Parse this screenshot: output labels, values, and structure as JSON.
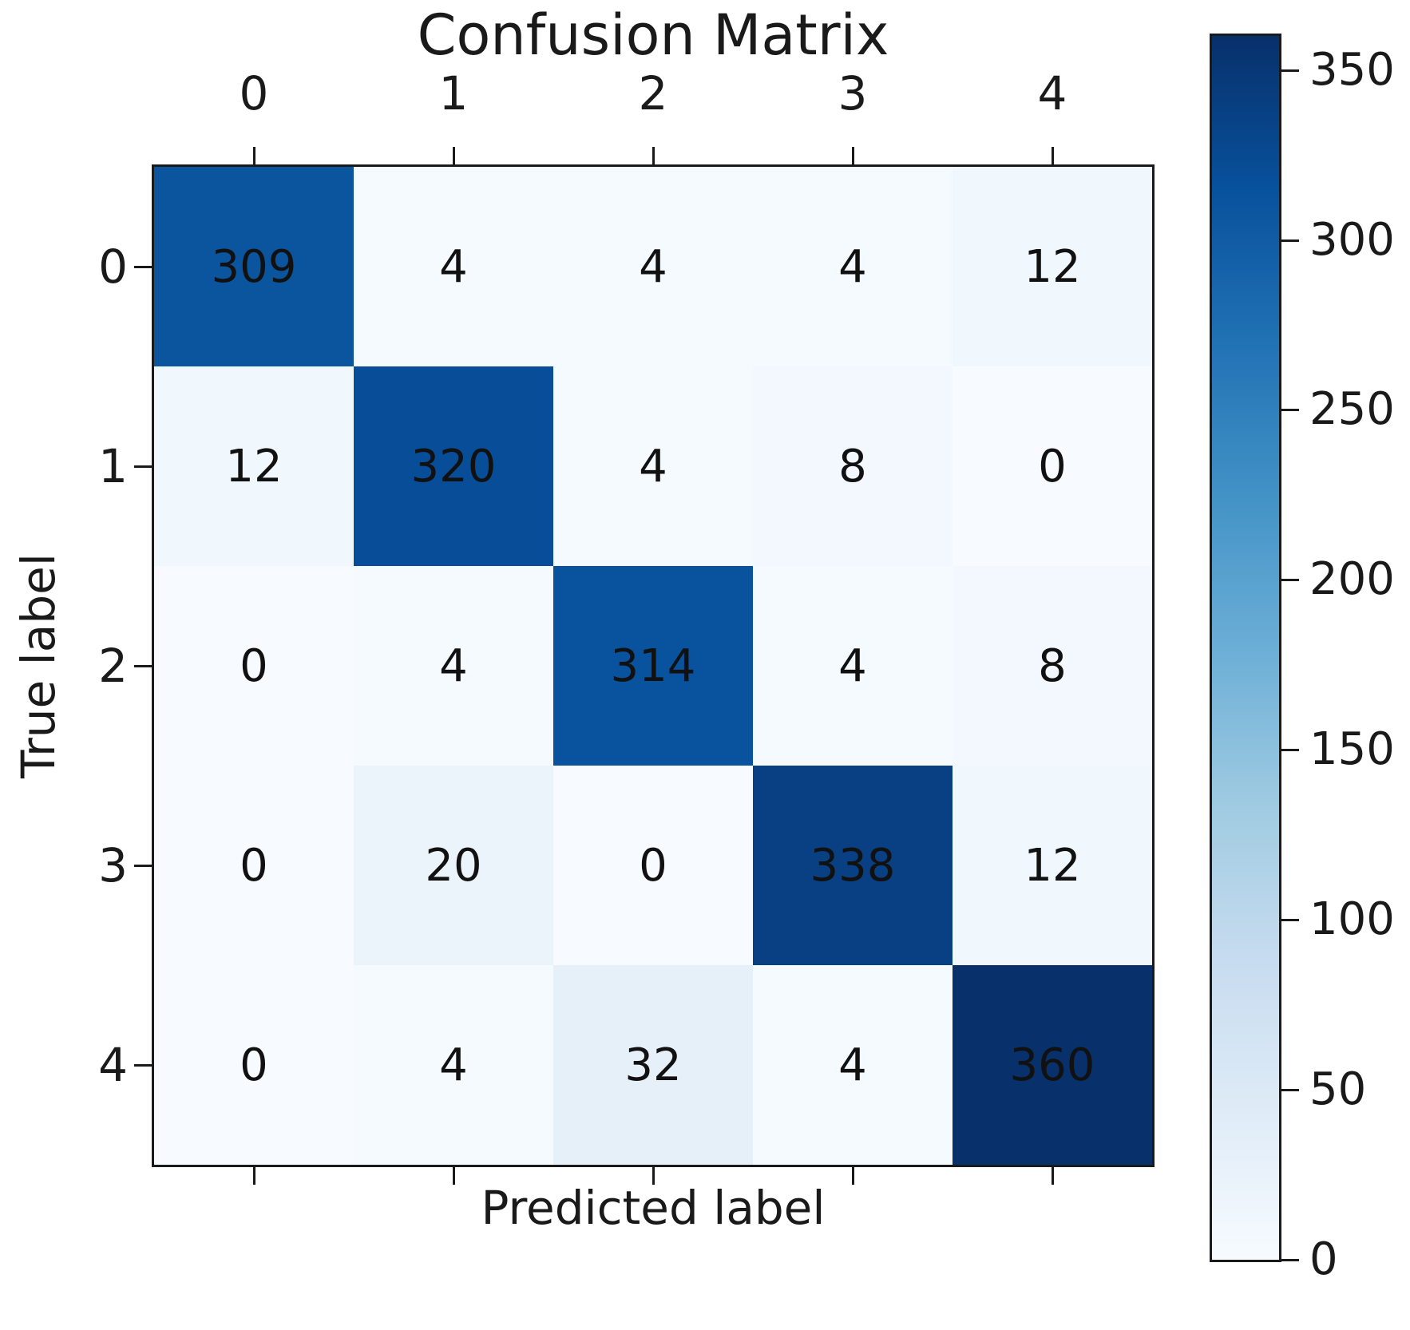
{
  "figure": {
    "background": "#ffffff"
  },
  "chart_data": {
    "type": "heatmap",
    "title": "Confusion Matrix",
    "xlabel": "Predicted label",
    "ylabel": "True label",
    "x_tick_labels": [
      "0",
      "1",
      "2",
      "3",
      "4"
    ],
    "y_tick_labels": [
      "0",
      "1",
      "2",
      "3",
      "4"
    ],
    "matrix": [
      [
        309,
        4,
        4,
        4,
        12
      ],
      [
        12,
        320,
        4,
        8,
        0
      ],
      [
        0,
        4,
        314,
        4,
        8
      ],
      [
        0,
        20,
        0,
        338,
        12
      ],
      [
        0,
        4,
        32,
        4,
        360
      ]
    ],
    "vmin": 0,
    "vmax": 360,
    "colormap_name": "Blues",
    "colormap_stops": [
      {
        "t": 0.0,
        "color": "#f7fbff"
      },
      {
        "t": 0.125,
        "color": "#deebf7"
      },
      {
        "t": 0.25,
        "color": "#c6dbef"
      },
      {
        "t": 0.375,
        "color": "#9ecae1"
      },
      {
        "t": 0.5,
        "color": "#6baed6"
      },
      {
        "t": 0.625,
        "color": "#4292c6"
      },
      {
        "t": 0.75,
        "color": "#2171b5"
      },
      {
        "t": 0.875,
        "color": "#08519c"
      },
      {
        "t": 1.0,
        "color": "#08306b"
      }
    ],
    "colorbar_tick_labels": [
      "0",
      "50",
      "100",
      "150",
      "200",
      "250",
      "300",
      "350"
    ],
    "colorbar_tick_values": [
      0,
      50,
      100,
      150,
      200,
      250,
      300,
      350
    ],
    "colorbar_position": "right",
    "annotation_text_color": "#111111",
    "axis_color": "#1a1a1a",
    "tick_label_color": "#1a1a1a",
    "grid": false,
    "legend": false
  }
}
